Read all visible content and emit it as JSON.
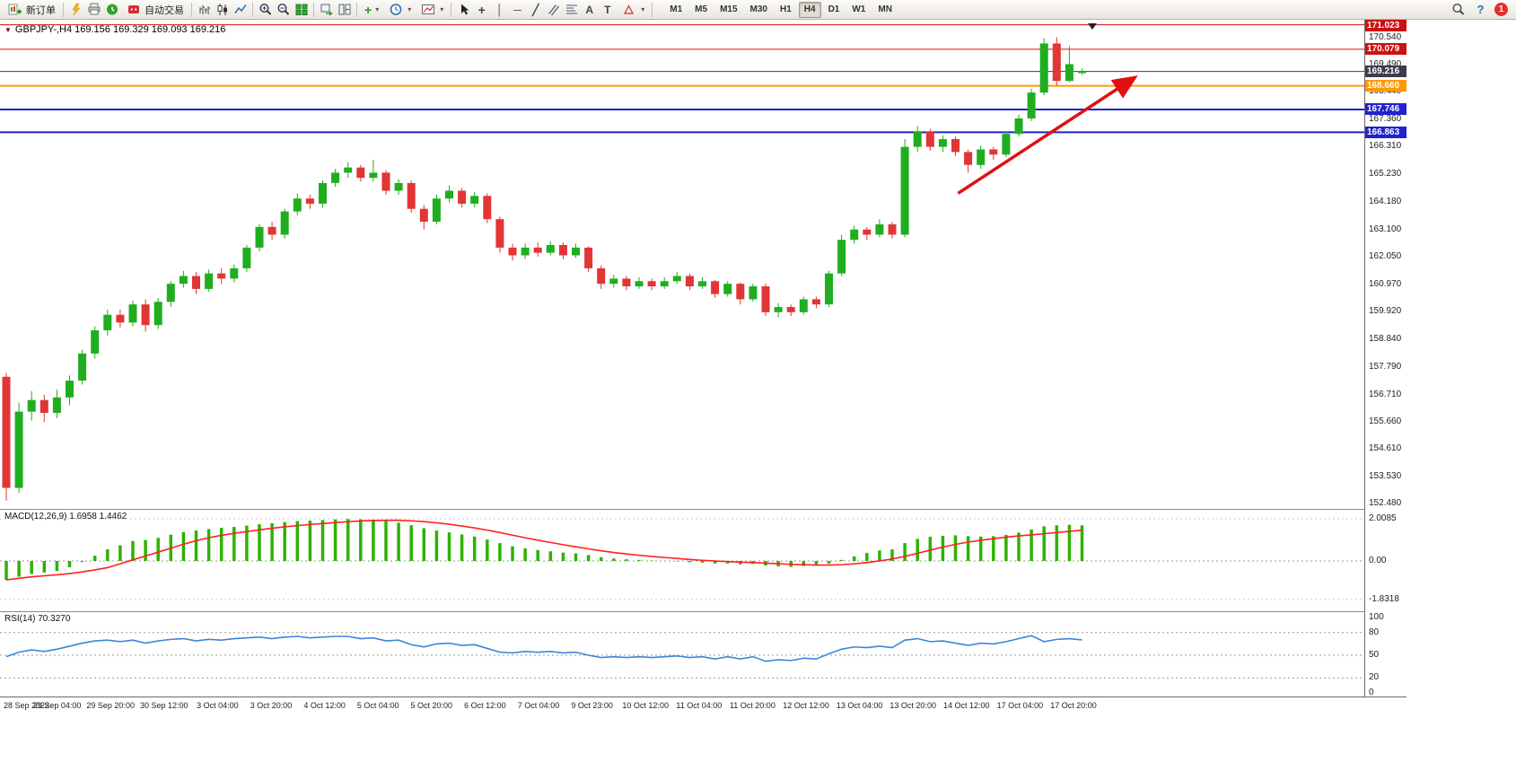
{
  "toolbar": {
    "new_order_label": "新订单",
    "autotrade_label": "自动交易",
    "timeframes": [
      "M1",
      "M5",
      "M15",
      "M30",
      "H1",
      "H4",
      "D1",
      "W1",
      "MN"
    ],
    "active_timeframe": "H4",
    "notification_count": "1"
  },
  "icons": {
    "caret": "▾",
    "symbol_dropdown": "▼",
    "plus": "+",
    "crosshair": "+",
    "vline": "│",
    "hline": "─",
    "trendline": "╱",
    "text_tool": "A",
    "label_tool": "T",
    "help": "?"
  },
  "chart": {
    "title": "GBPJPY-,H4  169.156 169.329 169.093 169.216"
  },
  "chart_data": {
    "type": "candlestick",
    "symbol": "GBPJPY-",
    "timeframe": "H4",
    "current_bar": {
      "open": 169.156,
      "high": 169.329,
      "low": 169.093,
      "close": 169.216
    },
    "price_axis": {
      "min": 152.32,
      "max": 171.15,
      "ticks": [
        "170.540",
        "169.490",
        "168.440",
        "167.360",
        "166.310",
        "165.230",
        "164.180",
        "163.100",
        "162.050",
        "160.970",
        "159.920",
        "158.840",
        "157.790",
        "156.710",
        "155.660",
        "154.610",
        "153.530",
        "152.480"
      ]
    },
    "levels": [
      {
        "label": "171.023",
        "price": 171.023,
        "color": "#cc1111",
        "badge": "#cc1111",
        "width": 1
      },
      {
        "label": "170.079",
        "price": 170.079,
        "color": "#cc1111",
        "badge": "#cc1111",
        "width": 1
      },
      {
        "label": "168.660",
        "price": 168.66,
        "color": "#ff9900",
        "badge": "#ff9900",
        "width": 2
      },
      {
        "label": "167.746",
        "price": 167.746,
        "color": "#2222cc",
        "badge": "#2222cc",
        "width": 2
      },
      {
        "label": "166.863",
        "price": 166.863,
        "color": "#2222cc",
        "badge": "#2222cc",
        "width": 2
      }
    ],
    "current_price": {
      "label": "169.216",
      "price": 169.216,
      "line_color": "#3c3c50",
      "badge": "#3c3c50"
    },
    "time_labels": [
      "28 Sep 2022",
      "29 Sep 04:00",
      "29 Sep 20:00",
      "30 Sep 12:00",
      "3 Oct 04:00",
      "3 Oct 20:00",
      "4 Oct 12:00",
      "5 Oct 04:00",
      "5 Oct 20:00",
      "6 Oct 12:00",
      "7 Oct 04:00",
      "9 Oct 23:00",
      "10 Oct 12:00",
      "11 Oct 04:00",
      "11 Oct 20:00",
      "12 Oct 12:00",
      "13 Oct 04:00",
      "13 Oct 20:00",
      "14 Oct 12:00",
      "17 Oct 04:00",
      "17 Oct 20:00"
    ],
    "candles": [
      [
        157.4,
        157.55,
        152.6,
        153.1
      ],
      [
        153.1,
        156.4,
        152.9,
        156.05
      ],
      [
        156.05,
        156.85,
        155.7,
        156.5
      ],
      [
        156.5,
        156.7,
        155.65,
        156.0
      ],
      [
        156.0,
        156.9,
        155.8,
        156.6
      ],
      [
        156.6,
        157.45,
        156.3,
        157.25
      ],
      [
        157.25,
        158.45,
        157.1,
        158.3
      ],
      [
        158.3,
        159.35,
        158.1,
        159.2
      ],
      [
        159.2,
        160.0,
        159.0,
        159.8
      ],
      [
        159.8,
        160.0,
        159.3,
        159.5
      ],
      [
        159.5,
        160.35,
        159.35,
        160.2
      ],
      [
        160.2,
        160.4,
        159.15,
        159.4
      ],
      [
        159.4,
        160.45,
        159.25,
        160.3
      ],
      [
        160.3,
        161.1,
        160.1,
        161.0
      ],
      [
        161.0,
        161.5,
        160.85,
        161.3
      ],
      [
        161.3,
        161.45,
        160.6,
        160.8
      ],
      [
        160.8,
        161.55,
        160.7,
        161.4
      ],
      [
        161.4,
        161.6,
        161.0,
        161.2
      ],
      [
        161.2,
        161.75,
        161.05,
        161.6
      ],
      [
        161.6,
        162.5,
        161.45,
        162.4
      ],
      [
        162.4,
        163.3,
        162.25,
        163.2
      ],
      [
        163.2,
        163.4,
        162.7,
        162.9
      ],
      [
        162.9,
        163.9,
        162.75,
        163.8
      ],
      [
        163.8,
        164.5,
        163.65,
        164.3
      ],
      [
        164.3,
        164.45,
        163.9,
        164.1
      ],
      [
        164.1,
        165.0,
        163.95,
        164.9
      ],
      [
        164.9,
        165.45,
        164.75,
        165.3
      ],
      [
        165.3,
        165.7,
        165.1,
        165.5
      ],
      [
        165.5,
        165.6,
        164.95,
        165.1
      ],
      [
        165.1,
        165.8,
        164.95,
        165.3
      ],
      [
        165.3,
        165.4,
        164.45,
        164.6
      ],
      [
        164.6,
        165.05,
        164.45,
        164.9
      ],
      [
        164.9,
        165.0,
        163.75,
        163.9
      ],
      [
        163.9,
        164.05,
        163.1,
        163.4
      ],
      [
        163.4,
        164.45,
        163.3,
        164.3
      ],
      [
        164.3,
        164.8,
        164.15,
        164.6
      ],
      [
        164.6,
        164.7,
        163.95,
        164.1
      ],
      [
        164.1,
        164.55,
        163.95,
        164.4
      ],
      [
        164.4,
        164.5,
        163.35,
        163.5
      ],
      [
        163.5,
        163.6,
        162.2,
        162.4
      ],
      [
        162.4,
        162.55,
        161.9,
        162.1
      ],
      [
        162.1,
        162.55,
        161.95,
        162.4
      ],
      [
        162.4,
        162.6,
        162.05,
        162.2
      ],
      [
        162.2,
        162.65,
        162.1,
        162.5
      ],
      [
        162.5,
        162.6,
        161.95,
        162.1
      ],
      [
        162.1,
        162.55,
        162.0,
        162.4
      ],
      [
        162.4,
        162.45,
        161.45,
        161.6
      ],
      [
        161.6,
        161.7,
        160.8,
        161.0
      ],
      [
        161.0,
        161.35,
        160.85,
        161.2
      ],
      [
        161.2,
        161.3,
        160.75,
        160.9
      ],
      [
        160.9,
        161.25,
        160.8,
        161.1
      ],
      [
        161.1,
        161.2,
        160.75,
        160.9
      ],
      [
        160.9,
        161.25,
        160.8,
        161.1
      ],
      [
        161.1,
        161.45,
        161.0,
        161.3
      ],
      [
        161.3,
        161.4,
        160.75,
        160.9
      ],
      [
        160.9,
        161.25,
        160.8,
        161.1
      ],
      [
        161.1,
        161.15,
        160.45,
        160.6
      ],
      [
        160.6,
        161.1,
        160.5,
        161.0
      ],
      [
        161.0,
        161.05,
        160.2,
        160.4
      ],
      [
        160.4,
        161.0,
        160.3,
        160.9
      ],
      [
        160.9,
        161.0,
        159.75,
        159.9
      ],
      [
        159.9,
        160.25,
        159.7,
        160.1
      ],
      [
        160.1,
        160.2,
        159.75,
        159.9
      ],
      [
        159.9,
        160.5,
        159.8,
        160.4
      ],
      [
        160.4,
        160.5,
        160.05,
        160.2
      ],
      [
        160.2,
        161.5,
        160.1,
        161.4
      ],
      [
        161.4,
        162.9,
        161.3,
        162.7
      ],
      [
        162.7,
        163.25,
        162.55,
        163.1
      ],
      [
        163.1,
        163.2,
        162.7,
        162.9
      ],
      [
        162.9,
        163.5,
        162.8,
        163.3
      ],
      [
        163.3,
        163.4,
        162.75,
        162.9
      ],
      [
        162.9,
        166.6,
        162.8,
        166.3
      ],
      [
        166.3,
        167.1,
        166.1,
        166.9
      ],
      [
        166.9,
        167.0,
        166.15,
        166.3
      ],
      [
        166.3,
        166.75,
        166.1,
        166.6
      ],
      [
        166.6,
        166.7,
        165.95,
        166.1
      ],
      [
        166.1,
        166.2,
        165.3,
        165.6
      ],
      [
        165.6,
        166.35,
        165.45,
        166.2
      ],
      [
        166.2,
        166.3,
        165.8,
        166.0
      ],
      [
        166.0,
        166.9,
        165.9,
        166.8
      ],
      [
        166.8,
        167.55,
        166.7,
        167.4
      ],
      [
        167.4,
        168.55,
        167.3,
        168.4
      ],
      [
        168.4,
        170.5,
        168.3,
        170.3
      ],
      [
        170.3,
        170.54,
        168.66,
        168.85
      ],
      [
        168.85,
        170.2,
        168.8,
        169.5
      ],
      [
        169.156,
        169.329,
        169.093,
        169.216
      ]
    ],
    "indicators": {
      "macd": {
        "label": "MACD(12,26,9) 1.6958 1.4462",
        "values": {
          "main": 1.6958,
          "signal": 1.4462
        },
        "axis_labels": [
          "2.0085",
          "0.00",
          "-1.8318"
        ],
        "signal_period": 9,
        "histogram": [
          -0.9,
          -0.75,
          -0.62,
          -0.55,
          -0.48,
          -0.3,
          -0.05,
          0.25,
          0.55,
          0.75,
          0.95,
          1.0,
          1.1,
          1.25,
          1.38,
          1.45,
          1.52,
          1.58,
          1.62,
          1.68,
          1.75,
          1.8,
          1.85,
          1.9,
          1.92,
          1.95,
          1.98,
          2.0,
          1.98,
          1.96,
          1.9,
          1.82,
          1.7,
          1.56,
          1.45,
          1.36,
          1.26,
          1.16,
          1.02,
          0.85,
          0.7,
          0.6,
          0.52,
          0.46,
          0.4,
          0.36,
          0.28,
          0.18,
          0.12,
          0.08,
          0.05,
          0.02,
          0.0,
          -0.02,
          -0.06,
          -0.08,
          -0.12,
          -0.12,
          -0.16,
          -0.14,
          -0.22,
          -0.26,
          -0.28,
          -0.24,
          -0.22,
          -0.12,
          0.05,
          0.22,
          0.38,
          0.5,
          0.55,
          0.85,
          1.05,
          1.15,
          1.2,
          1.22,
          1.18,
          1.16,
          1.18,
          1.24,
          1.35,
          1.5,
          1.65,
          1.7,
          1.72,
          1.7
        ]
      },
      "rsi": {
        "label": "RSI(14) 70.3270",
        "value": 70.327,
        "axis_labels": [
          "100",
          "80",
          "50",
          "20",
          "0"
        ],
        "dashed_levels": [
          80,
          50,
          20
        ],
        "values": [
          48,
          54,
          57,
          55,
          58,
          62,
          66,
          69,
          70,
          68,
          70,
          66,
          69,
          71,
          72,
          69,
          71,
          70,
          72,
          73,
          74,
          72,
          74,
          75,
          73,
          74,
          75,
          75,
          72,
          73,
          69,
          70,
          64,
          61,
          65,
          66,
          63,
          64,
          59,
          54,
          53,
          55,
          54,
          55,
          53,
          54,
          50,
          47,
          48,
          47,
          48,
          47,
          48,
          49,
          47,
          48,
          45,
          48,
          45,
          48,
          42,
          44,
          43,
          46,
          45,
          52,
          58,
          61,
          60,
          62,
          60,
          70,
          72,
          68,
          69,
          66,
          63,
          66,
          65,
          68,
          72,
          76,
          68,
          71,
          72,
          70.33
        ]
      }
    },
    "annotation_arrow": {
      "from": {
        "t": 75.2,
        "price": 164.5
      },
      "to": {
        "t": 89,
        "price": 168.93
      },
      "color": "#e01010"
    },
    "colors": {
      "bull": "#1fae1f",
      "bear": "#e23535",
      "macd_hist": "#2db200",
      "macd_signal": "#ff2020",
      "rsi_line": "#3d85d8",
      "arrow": "#e01010",
      "level_red": "#cc1111",
      "level_orange": "#ff9900",
      "level_blue": "#2222cc"
    }
  }
}
